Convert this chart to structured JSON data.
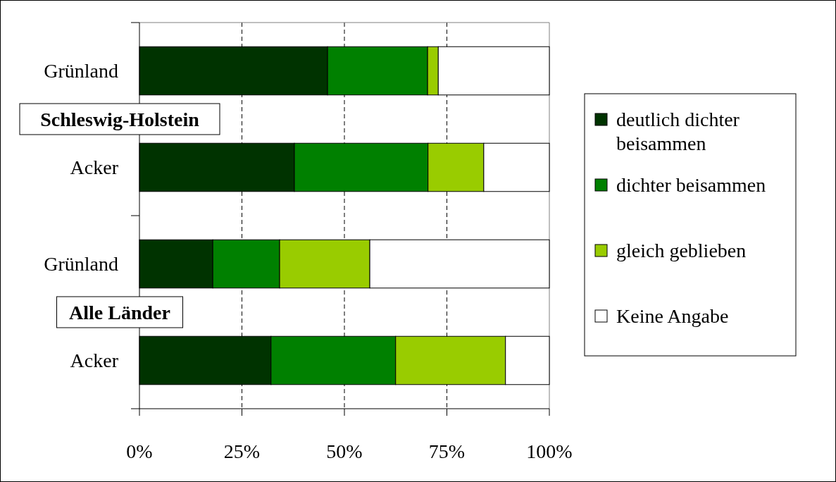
{
  "chart_data": {
    "type": "bar",
    "orientation": "horizontal",
    "stacked": true,
    "categories": [
      "Grünland",
      "Acker",
      "Grünland",
      "Acker"
    ],
    "series": [
      {
        "name": "deutlich dichter beisammen",
        "color": "#003300",
        "values": [
          45.9,
          37.8,
          17.9,
          32.1
        ]
      },
      {
        "name": "dichter beisammen",
        "color": "#008000",
        "values": [
          24.4,
          32.6,
          16.3,
          30.4
        ]
      },
      {
        "name": "gleich geblieben",
        "color": "#99cc00",
        "values": [
          2.6,
          13.6,
          22.0,
          26.8
        ]
      },
      {
        "name": "Keine Angabe",
        "color": "#ffffff",
        "values": [
          27.1,
          16.0,
          43.8,
          10.7
        ]
      }
    ],
    "xlim": [
      0,
      100
    ],
    "xticks": [
      {
        "value": 0,
        "label": "0%"
      },
      {
        "value": 25,
        "label": "25%"
      },
      {
        "value": 50,
        "label": "50%"
      },
      {
        "value": 75,
        "label": "75%"
      },
      {
        "value": 100,
        "label": "100%"
      }
    ],
    "grid": "x",
    "legend": "right",
    "annotations": [
      "Schleswig-Holstein",
      "Alle Länder"
    ]
  }
}
